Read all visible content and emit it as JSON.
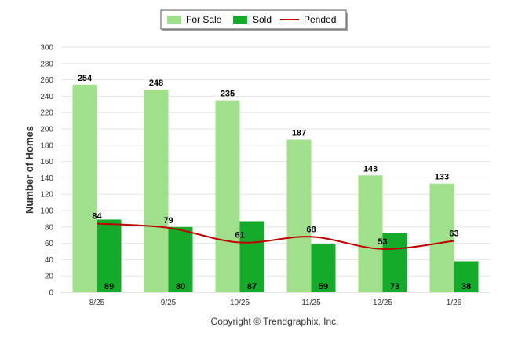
{
  "chart_data": {
    "type": "bar",
    "categories": [
      "8/25",
      "9/25",
      "10/25",
      "11/25",
      "12/25",
      "1/26"
    ],
    "series": [
      {
        "name": "For Sale",
        "kind": "bar",
        "color": "#a0e08a",
        "values": [
          254,
          248,
          235,
          187,
          143,
          133
        ]
      },
      {
        "name": "Sold",
        "kind": "bar",
        "color": "#14ab2a",
        "values": [
          89,
          80,
          87,
          59,
          73,
          38
        ]
      },
      {
        "name": "Pended",
        "kind": "line",
        "color": "#c00000",
        "values": [
          84,
          79,
          61,
          68,
          53,
          63
        ]
      }
    ],
    "ylabel": "Number of Homes",
    "xlabel": "",
    "ylim": [
      0,
      300
    ],
    "yticks": [
      0,
      20,
      40,
      60,
      80,
      100,
      120,
      140,
      160,
      180,
      200,
      220,
      240,
      260,
      280,
      300
    ],
    "grid": true,
    "legend_position": "top-center",
    "credit": "Copyright © Trendgraphix, Inc."
  }
}
